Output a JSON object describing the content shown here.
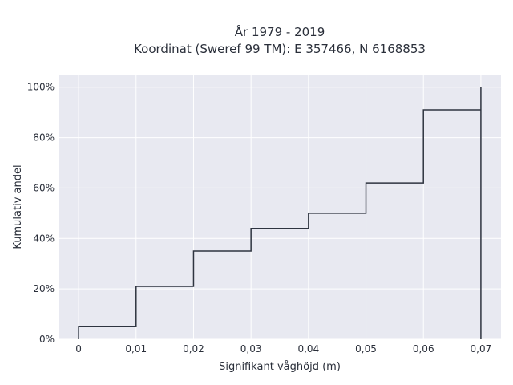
{
  "chart_data": {
    "type": "line",
    "subtype": "step",
    "title": [
      "År 1979 - 2019",
      "Koordinat (Sweref 99 TM): E 357466, N 6168853"
    ],
    "xlabel": "Signifikant våghöjd (m)",
    "ylabel": "Kumulativ andel",
    "xlim": [
      -0.0035,
      0.0735
    ],
    "ylim": [
      0,
      1.05
    ],
    "xticks": [
      0,
      0.01,
      0.02,
      0.03,
      0.04,
      0.05,
      0.06,
      0.07
    ],
    "xtick_labels": [
      "0",
      "0,01",
      "0,02",
      "0,03",
      "0,04",
      "0,05",
      "0,06",
      "0,07"
    ],
    "yticks": [
      0,
      0.2,
      0.4,
      0.6,
      0.8,
      1.0
    ],
    "ytick_labels": [
      "0%",
      "20%",
      "40%",
      "60%",
      "80%",
      "100%"
    ],
    "grid": true,
    "line_color": "#2e3440",
    "background_color": "#e8e9f1",
    "series": [
      {
        "x": [
          0,
          0.01,
          0.02,
          0.03,
          0.04,
          0.05,
          0.06,
          0.07
        ],
        "y": [
          0.05,
          0.21,
          0.35,
          0.44,
          0.5,
          0.62,
          0.91,
          1.0
        ]
      }
    ]
  }
}
